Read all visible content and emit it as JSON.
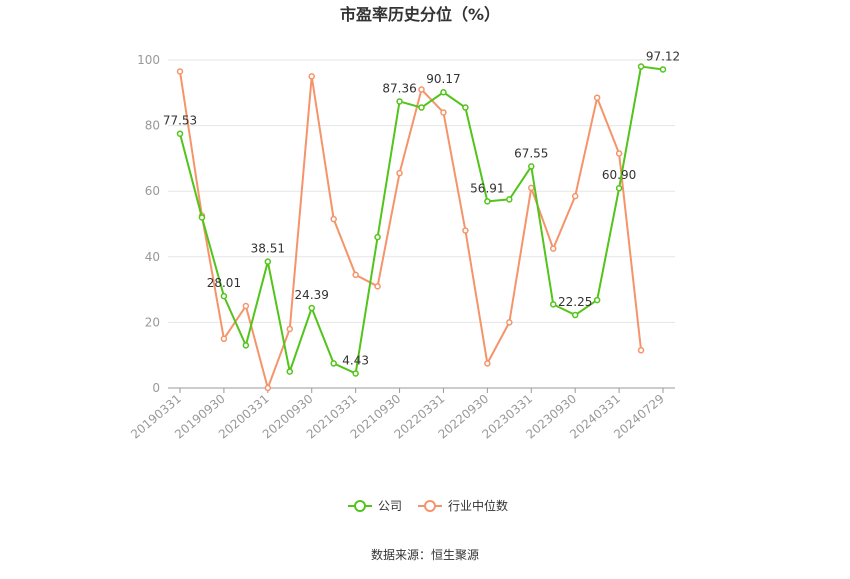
{
  "chart_data": {
    "type": "line",
    "title": "市盈率历史分位（%）",
    "source": "数据来源：恒生聚源",
    "ylim": [
      0,
      100
    ],
    "y_ticks": [
      0,
      20,
      40,
      60,
      80,
      100
    ],
    "grid": true,
    "legend_position": "bottom-center",
    "x": [
      "20190331",
      "20190630",
      "20190930",
      "20191231",
      "20200331",
      "20200630",
      "20200930",
      "20201231",
      "20210331",
      "20210630",
      "20210930",
      "20211231",
      "20220331",
      "20220630",
      "20220930",
      "20221231",
      "20230331",
      "20230630",
      "20230930",
      "20231231",
      "20240331",
      "20240630",
      "20240729"
    ],
    "x_tick_labels": [
      "20190331",
      "20190930",
      "20200331",
      "20200930",
      "20210331",
      "20210930",
      "20220331",
      "20220930",
      "20230331",
      "20230930",
      "20240331",
      "20240729"
    ],
    "series": [
      {
        "name": "公司",
        "color": "#52c41a",
        "values": [
          77.53,
          52.0,
          28.01,
          13.0,
          38.51,
          5.0,
          24.39,
          7.5,
          4.43,
          46.0,
          87.36,
          85.5,
          90.17,
          85.5,
          56.91,
          57.5,
          67.55,
          25.5,
          22.25,
          26.8,
          60.9,
          98.0,
          97.12
        ]
      },
      {
        "name": "行业中位数",
        "color": "#f5946a",
        "values": [
          96.5,
          52.5,
          15.0,
          25.0,
          0.0,
          18.0,
          95.0,
          51.5,
          34.5,
          31.0,
          65.5,
          91.0,
          84.0,
          48.0,
          7.5,
          20.0,
          61.0,
          42.5,
          58.5,
          88.5,
          71.5,
          11.5,
          null
        ]
      }
    ],
    "annotations": [
      {
        "series": 0,
        "index": 0,
        "label": "77.53"
      },
      {
        "series": 0,
        "index": 2,
        "label": "28.01"
      },
      {
        "series": 0,
        "index": 4,
        "label": "38.51"
      },
      {
        "series": 0,
        "index": 6,
        "label": "24.39"
      },
      {
        "series": 0,
        "index": 8,
        "label": "4.43"
      },
      {
        "series": 0,
        "index": 10,
        "label": "87.36"
      },
      {
        "series": 0,
        "index": 12,
        "label": "90.17"
      },
      {
        "series": 0,
        "index": 14,
        "label": "56.91"
      },
      {
        "series": 0,
        "index": 16,
        "label": "67.55"
      },
      {
        "series": 0,
        "index": 18,
        "label": "22.25"
      },
      {
        "series": 0,
        "index": 20,
        "label": "60.90"
      },
      {
        "series": 0,
        "index": 22,
        "label": "97.12"
      }
    ]
  }
}
